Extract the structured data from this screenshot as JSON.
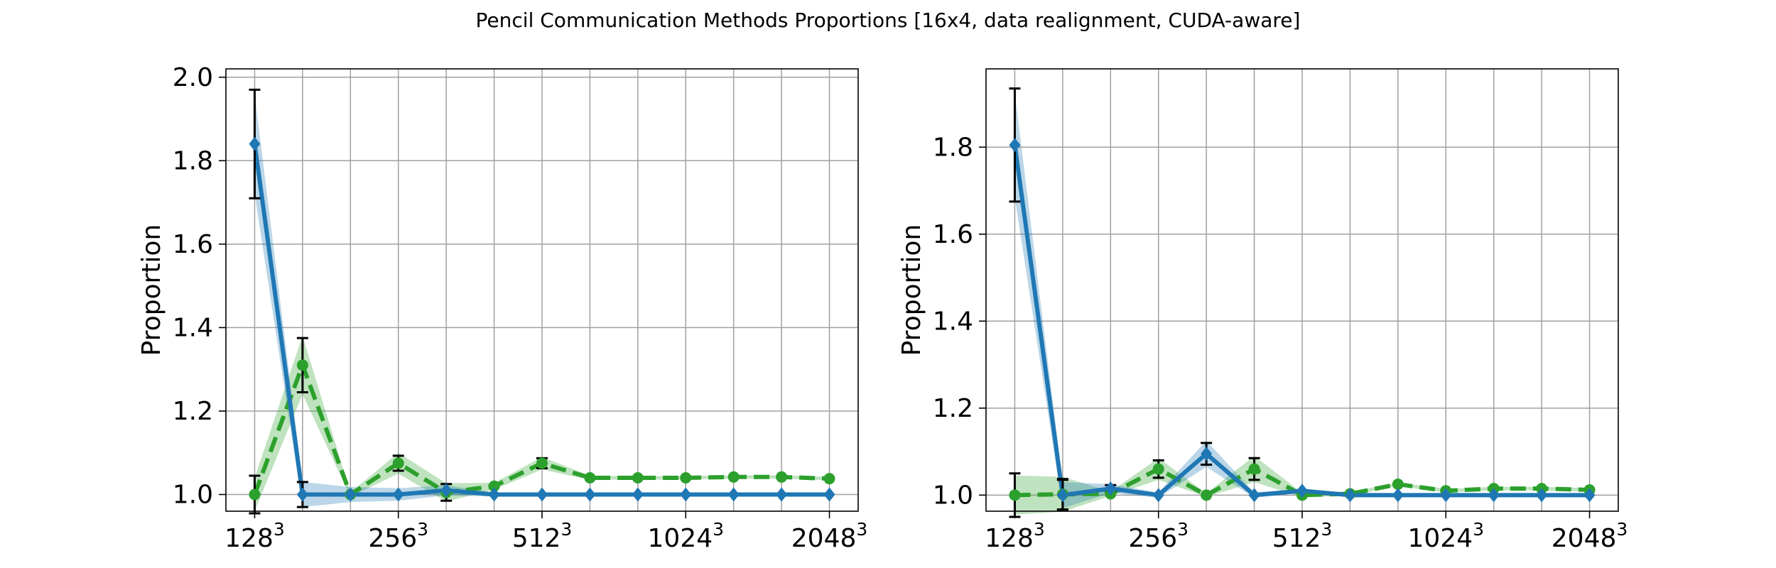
{
  "title": "Pencil Communication Methods Proportions [16x4, data realignment, CUDA-aware]",
  "colors": {
    "blue": "#1f77b4",
    "green": "#2ca02c",
    "grid": "#a0a0a0"
  },
  "chart_data": [
    {
      "type": "line",
      "ylabel": "Proportion",
      "ylim": [
        0.96,
        2.02
      ],
      "yticks": [
        1.0,
        1.2,
        1.4,
        1.6,
        1.8,
        2.0
      ],
      "ytick_labels": [
        "1.0",
        "1.2",
        "1.4",
        "1.6",
        "1.8",
        "2.0"
      ],
      "xlim": [
        -0.6,
        12.6
      ],
      "grid_x": [
        0,
        1,
        2,
        3,
        4,
        5,
        6,
        7,
        8,
        9,
        10,
        11,
        12
      ],
      "xticks": [
        0,
        3,
        6,
        9,
        12
      ],
      "xtick_labels": [
        {
          "base": "128",
          "exp": "3"
        },
        {
          "base": "256",
          "exp": "3"
        },
        {
          "base": "512",
          "exp": "3"
        },
        {
          "base": "1024",
          "exp": "3"
        },
        {
          "base": "2048",
          "exp": "3"
        }
      ],
      "series": [
        {
          "color": "#2ca02c",
          "style": "dashed",
          "marker": "circle",
          "x": [
            0,
            1,
            2,
            3,
            4,
            5,
            6,
            7,
            8,
            9,
            10,
            11,
            12
          ],
          "y": [
            1.0,
            1.31,
            1.0,
            1.075,
            1.005,
            1.02,
            1.075,
            1.04,
            1.04,
            1.04,
            1.042,
            1.042,
            1.038
          ],
          "err": [
            0.045,
            0.065,
            0.005,
            0.018,
            0.02,
            0.005,
            0.012,
            0.004,
            0.003,
            0.003,
            0.003,
            0.003,
            0.003
          ],
          "band": [
            0.04,
            0.07,
            0.005,
            0.025,
            0.022,
            0.008,
            0.015,
            0.005,
            0.004,
            0.004,
            0.004,
            0.004,
            0.004
          ]
        },
        {
          "color": "#1f77b4",
          "style": "solid",
          "marker": "diamond",
          "x": [
            0,
            1,
            2,
            3,
            4,
            5,
            6,
            7,
            8,
            9,
            10,
            11,
            12
          ],
          "y": [
            1.84,
            1.0,
            1.0,
            1.0,
            1.01,
            1.0,
            1.0,
            1.0,
            1.0,
            1.0,
            1.0,
            1.0,
            1.0
          ],
          "err": [
            0.13,
            0.03,
            0.0,
            0.0,
            0.0,
            0.0,
            0.0,
            0.0,
            0.0,
            0.0,
            0.0,
            0.0,
            0.0
          ],
          "band": [
            0.12,
            0.03,
            0.018,
            0.015,
            0.012,
            0.005,
            0.004,
            0.003,
            0.003,
            0.003,
            0.003,
            0.003,
            0.003
          ]
        }
      ]
    },
    {
      "type": "line",
      "ylabel": "Proportion",
      "ylim": [
        0.963,
        1.98
      ],
      "yticks": [
        1.0,
        1.2,
        1.4,
        1.6,
        1.8
      ],
      "ytick_labels": [
        "1.0",
        "1.2",
        "1.4",
        "1.6",
        "1.8"
      ],
      "xlim": [
        -0.6,
        12.6
      ],
      "grid_x": [
        0,
        1,
        2,
        3,
        4,
        5,
        6,
        7,
        8,
        9,
        10,
        11,
        12
      ],
      "xticks": [
        0,
        3,
        6,
        9,
        12
      ],
      "xtick_labels": [
        {
          "base": "128",
          "exp": "3"
        },
        {
          "base": "256",
          "exp": "3"
        },
        {
          "base": "512",
          "exp": "3"
        },
        {
          "base": "1024",
          "exp": "3"
        },
        {
          "base": "2048",
          "exp": "3"
        }
      ],
      "series": [
        {
          "color": "#2ca02c",
          "style": "dashed",
          "marker": "circle",
          "x": [
            0,
            1,
            2,
            3,
            4,
            5,
            6,
            7,
            8,
            9,
            10,
            11,
            12
          ],
          "y": [
            1.0,
            1.002,
            1.003,
            1.06,
            1.0,
            1.06,
            1.0,
            1.003,
            1.025,
            1.01,
            1.015,
            1.015,
            1.012
          ],
          "err": [
            0.05,
            0.035,
            0.004,
            0.02,
            0.003,
            0.025,
            0.004,
            0.003,
            0.003,
            0.003,
            0.003,
            0.003,
            0.003
          ],
          "band": [
            0.045,
            0.04,
            0.005,
            0.025,
            0.004,
            0.03,
            0.005,
            0.004,
            0.004,
            0.004,
            0.004,
            0.004,
            0.004
          ]
        },
        {
          "color": "#1f77b4",
          "style": "solid",
          "marker": "diamond",
          "x": [
            0,
            1,
            2,
            3,
            4,
            5,
            6,
            7,
            8,
            9,
            10,
            11,
            12
          ],
          "y": [
            1.805,
            1.0,
            1.015,
            1.0,
            1.095,
            1.0,
            1.01,
            1.0,
            1.0,
            1.0,
            1.0,
            1.0,
            1.0
          ],
          "err": [
            0.13,
            0.035,
            0.008,
            0.004,
            0.025,
            0.004,
            0.004,
            0.0,
            0.0,
            0.0,
            0.0,
            0.0,
            0.0
          ],
          "band": [
            0.12,
            0.03,
            0.01,
            0.006,
            0.03,
            0.006,
            0.005,
            0.003,
            0.003,
            0.003,
            0.003,
            0.003,
            0.003
          ]
        }
      ]
    }
  ]
}
